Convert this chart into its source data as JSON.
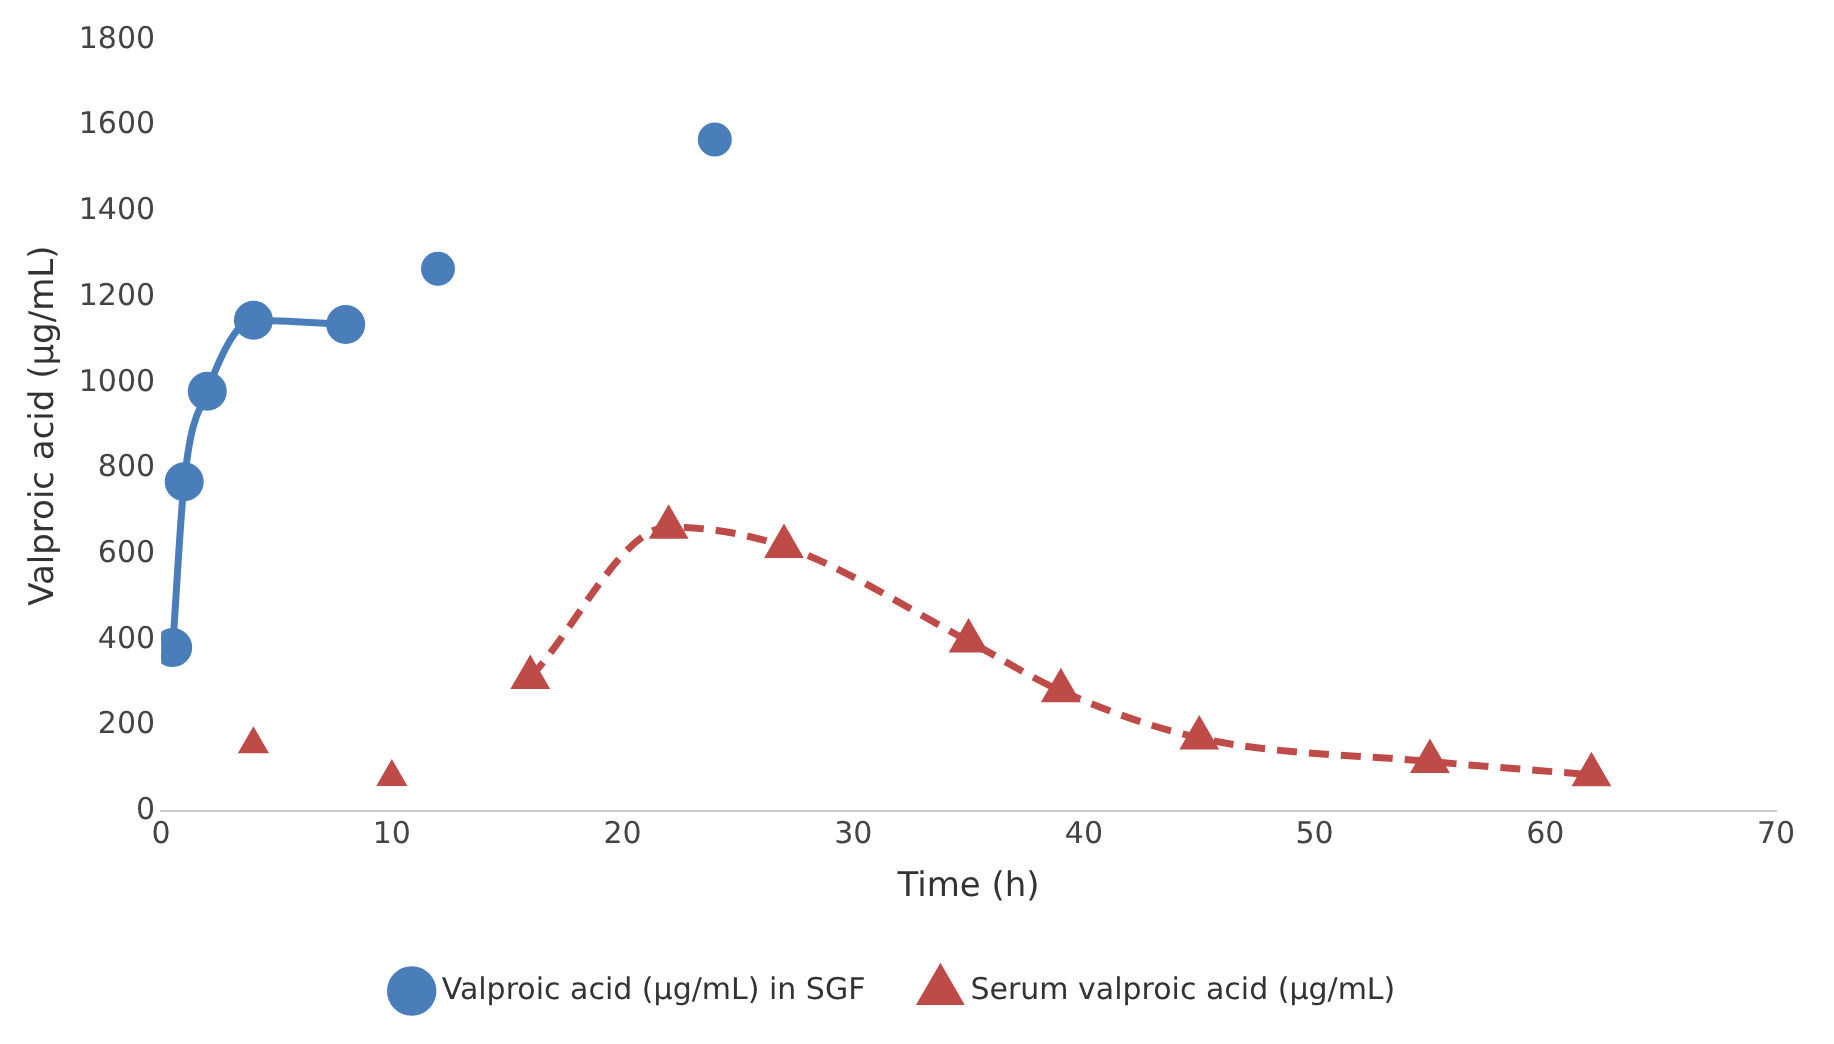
{
  "chart_data": {
    "type": "line",
    "xlabel": "Time (h)",
    "ylabel": "Valproic acid (µg/mL)",
    "xlim": [
      0,
      70
    ],
    "xticks": [
      0,
      10,
      20,
      30,
      40,
      50,
      60,
      70
    ],
    "ylim": [
      0,
      1800
    ],
    "yticks": [
      0,
      200,
      400,
      600,
      800,
      1000,
      1200,
      1400,
      1600,
      1800
    ],
    "grid": false,
    "legend": "bottom",
    "series": [
      {
        "name": "Valproic acid (µg/mL) in SGF",
        "color": "#4a7ebb",
        "marker": "circle",
        "line_style": "solid",
        "x": [
          0.5,
          1,
          2,
          4,
          8
        ],
        "values": [
          382,
          769,
          980,
          1146,
          1136
        ]
      },
      {
        "type": "scatter",
        "color": "#4a7ebb",
        "marker": "circle",
        "x": [
          12,
          24
        ],
        "values": [
          1266,
          1568
        ]
      },
      {
        "name": "Serum valproic acid (µg/mL)",
        "color": "#be4b48",
        "marker": "triangle",
        "line_style": "dashed",
        "x": [
          16,
          22,
          27,
          35,
          39,
          45,
          55,
          62
        ],
        "values": [
          312,
          663,
          618,
          397,
          281,
          171,
          116,
          85
        ]
      },
      {
        "type": "scatter",
        "color": "#be4b48",
        "marker": "triangle",
        "x": [
          4,
          10
        ],
        "values": [
          156,
          80
        ]
      }
    ]
  }
}
